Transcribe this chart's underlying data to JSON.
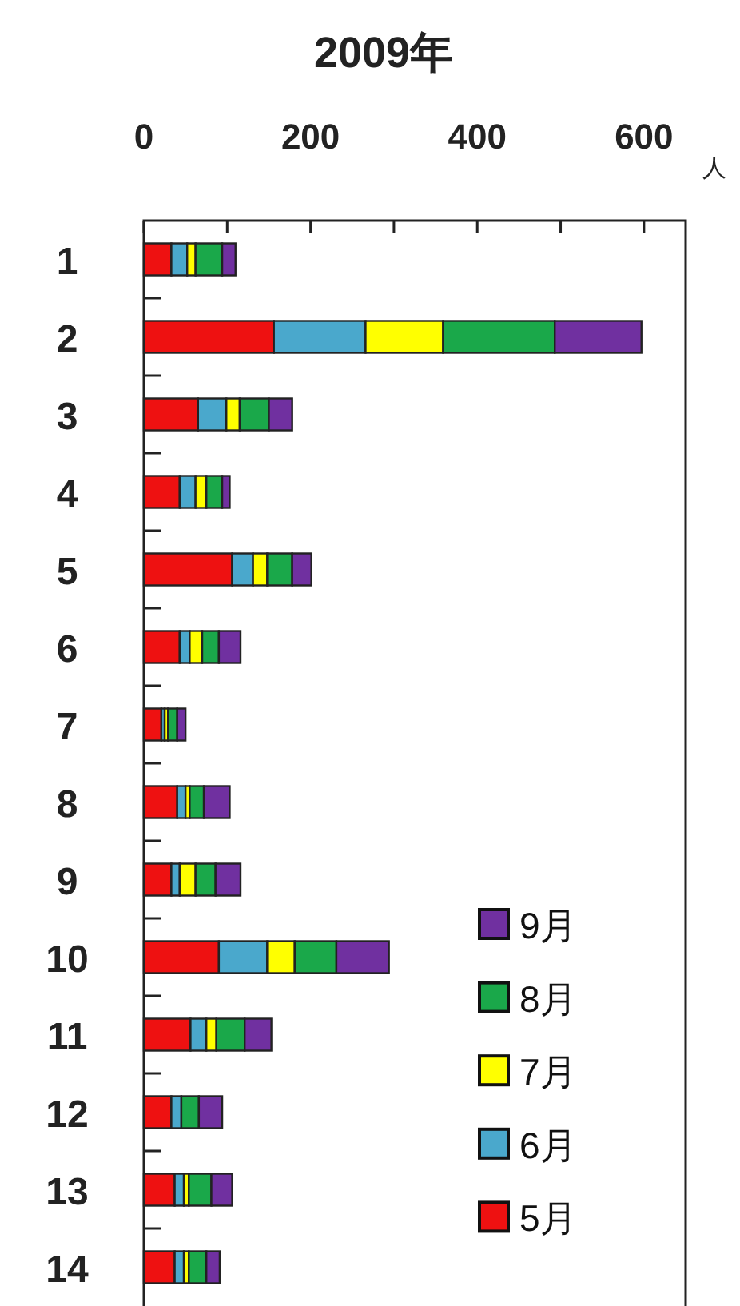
{
  "chart_data": {
    "type": "bar",
    "orientation": "horizontal",
    "stacked": true,
    "title": "2009年",
    "xlabel": "人",
    "categories": [
      "1",
      "2",
      "3",
      "4",
      "5",
      "6",
      "7",
      "8",
      "9",
      "10",
      "11",
      "12",
      "13",
      "14"
    ],
    "xlim": [
      0,
      650
    ],
    "xticks": [
      0,
      {
        "value": 100,
        "label": null
      },
      200,
      {
        "value": 300,
        "label": null
      },
      400,
      {
        "value": 500,
        "label": null
      },
      600
    ],
    "legend": "bottom right",
    "grid": false,
    "series": [
      {
        "name": "5月",
        "color": "#ee1111",
        "values": [
          33,
          156,
          65,
          43,
          106,
          43,
          21,
          40,
          33,
          90,
          56,
          33,
          37,
          37
        ]
      },
      {
        "name": "6月",
        "color": "#4aa8cc",
        "values": [
          19,
          110,
          34,
          19,
          25,
          12,
          4,
          10,
          10,
          58,
          19,
          12,
          11,
          11
        ]
      },
      {
        "name": "7月",
        "color": "#ffff00",
        "values": [
          10,
          93,
          16,
          13,
          17,
          15,
          4,
          5,
          19,
          33,
          12,
          null,
          6,
          6
        ]
      },
      {
        "name": "8月",
        "color": "#1aa84a",
        "values": [
          32,
          134,
          35,
          19,
          30,
          20,
          11,
          17,
          24,
          50,
          34,
          21,
          27,
          21
        ]
      },
      {
        "name": "9月",
        "color": "#7030a0",
        "values": [
          16,
          104,
          28,
          9,
          23,
          26,
          10,
          31,
          30,
          63,
          32,
          28,
          25,
          16
        ]
      }
    ]
  }
}
